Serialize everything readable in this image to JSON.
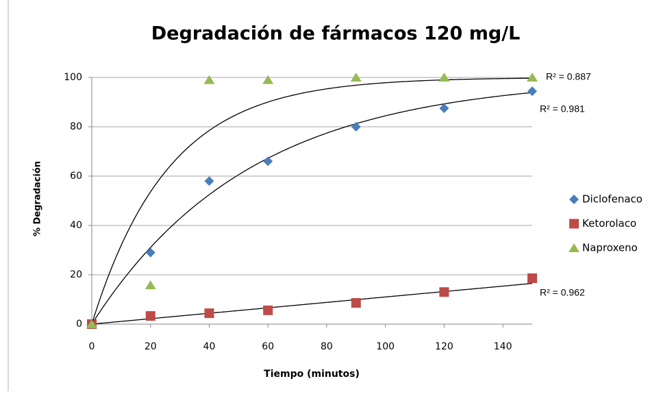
{
  "chart_data": {
    "type": "scatter",
    "title": "Degradación de fármacos 120 mg/L",
    "x_label": "Tiempo (minutos)",
    "y_label": "% Degradación",
    "xlim": [
      0,
      150
    ],
    "ylim": [
      0,
      100
    ],
    "xticks": [
      0,
      20,
      40,
      60,
      80,
      100,
      120,
      140
    ],
    "yticks": [
      0,
      20,
      40,
      60,
      80,
      100
    ],
    "grid": true,
    "legend": "right",
    "series": [
      {
        "name": "Diclofenaco",
        "color": "#4a7ebb",
        "marker": "diamond",
        "x": [
          0,
          20,
          40,
          60,
          90,
          120,
          150
        ],
        "values": [
          0,
          29,
          58,
          66,
          80,
          87.5,
          94.4
        ],
        "trend": {
          "type": "exponential",
          "rate": 0.0186,
          "plateau": 100,
          "label": "R² = 0.981"
        }
      },
      {
        "name": "Ketorolaco",
        "color": "#be4b48",
        "marker": "square",
        "x": [
          0,
          20,
          40,
          60,
          90,
          120,
          150
        ],
        "values": [
          0,
          3.3,
          4.4,
          5.6,
          8.6,
          13,
          18.6
        ],
        "trend": {
          "type": "linear",
          "slope": 0.11,
          "label": "R² = 0.962"
        }
      },
      {
        "name": "Naproxeno",
        "color": "#98b954",
        "marker": "triangle",
        "x": [
          0,
          20,
          40,
          60,
          90,
          120,
          150
        ],
        "values": [
          0,
          15.8,
          99,
          99,
          100,
          100,
          100
        ],
        "trend": {
          "type": "exponential",
          "rate": 0.0384,
          "plateau": 100,
          "label": "R² = 0.887"
        }
      }
    ]
  }
}
